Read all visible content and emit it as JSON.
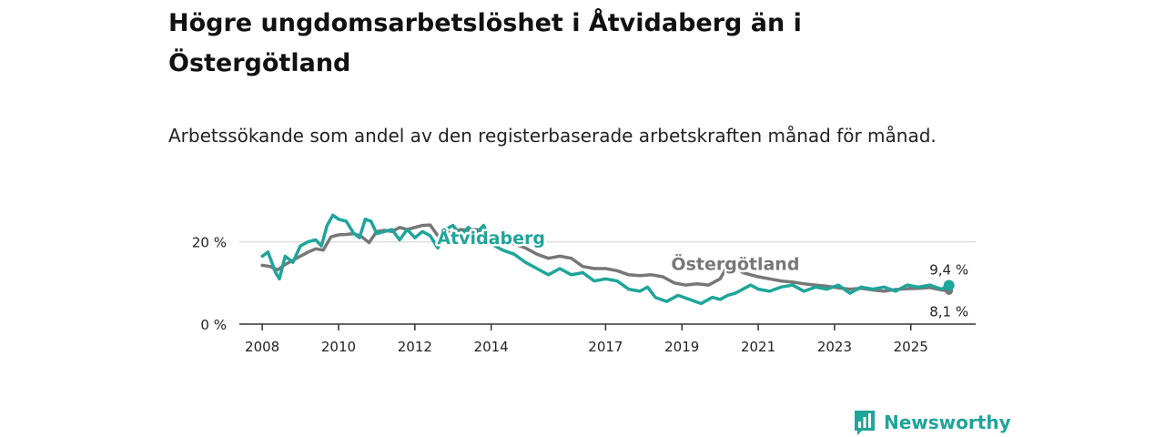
{
  "title": "Högre ungdomsarbetslöshet i Åtvidaberg än i Östergötland",
  "subtitle": "Arbetssökande som andel av den registerbaserade arbetskraften månad för månad.",
  "brand": {
    "name": "Newsworthy",
    "icon": "bar-chart-icon",
    "color": "#1fa59a"
  },
  "chart_data": {
    "type": "line",
    "y_ticks": [
      {
        "value": 0,
        "label": "0 %"
      },
      {
        "value": 20,
        "label": "20 %"
      }
    ],
    "ylim": [
      0,
      27
    ],
    "x_ticks": [
      {
        "value": 2008,
        "label": "2008"
      },
      {
        "value": 2010,
        "label": "2010"
      },
      {
        "value": 2012,
        "label": "2012"
      },
      {
        "value": 2014,
        "label": "2014"
      },
      {
        "value": 2017,
        "label": "2017"
      },
      {
        "value": 2019,
        "label": "2019"
      },
      {
        "value": 2021,
        "label": "2021"
      },
      {
        "value": 2023,
        "label": "2023"
      },
      {
        "value": 2025,
        "label": "2025"
      }
    ],
    "xlim": [
      2007.4,
      2026.7
    ],
    "series": [
      {
        "name": "Östergötland",
        "color": "#777777",
        "end_label": "8,1 %",
        "x": [
          2008.0,
          2008.2,
          2008.4,
          2008.6,
          2008.8,
          2009.0,
          2009.2,
          2009.4,
          2009.6,
          2009.8,
          2010.0,
          2010.2,
          2010.4,
          2010.6,
          2010.8,
          2011.0,
          2011.2,
          2011.4,
          2011.6,
          2011.8,
          2012.0,
          2012.2,
          2012.4,
          2012.6,
          2012.8,
          2013.0,
          2013.2,
          2013.4,
          2013.6,
          2013.8,
          2014.0,
          2014.3,
          2014.6,
          2014.9,
          2015.2,
          2015.5,
          2015.8,
          2016.1,
          2016.4,
          2016.7,
          2017.0,
          2017.3,
          2017.6,
          2017.9,
          2018.2,
          2018.5,
          2018.8,
          2019.1,
          2019.4,
          2019.7,
          2020.0,
          2020.2,
          2020.4,
          2020.6,
          2020.8,
          2021.0,
          2021.3,
          2021.6,
          2021.9,
          2022.2,
          2022.5,
          2022.8,
          2023.1,
          2023.4,
          2023.7,
          2024.0,
          2024.3,
          2024.6,
          2024.9,
          2025.2,
          2025.5,
          2025.8,
          2026.0
        ],
        "y": [
          14.3,
          14.0,
          13.2,
          14.5,
          15.5,
          16.5,
          17.5,
          18.3,
          18.0,
          21.2,
          21.7,
          21.8,
          22.0,
          21.3,
          19.8,
          22.5,
          22.8,
          22.5,
          23.5,
          23.0,
          23.5,
          24.0,
          24.1,
          21.5,
          22.0,
          22.5,
          23.0,
          22.8,
          23.0,
          22.5,
          21.0,
          20.5,
          19.5,
          18.5,
          17.0,
          16.0,
          16.5,
          16.0,
          14.0,
          13.5,
          13.5,
          13.0,
          12.0,
          11.8,
          12.0,
          11.5,
          10.0,
          9.5,
          9.8,
          9.5,
          11.0,
          14.2,
          14.0,
          12.5,
          12.0,
          11.5,
          11.0,
          10.5,
          10.2,
          9.8,
          9.5,
          9.2,
          8.8,
          8.5,
          8.7,
          8.3,
          8.0,
          8.4,
          8.6,
          8.7,
          8.9,
          8.3,
          8.1
        ]
      },
      {
        "name": "Åtvidaberg",
        "color": "#1fa59a",
        "end_label": "9,4 %",
        "x": [
          2008.0,
          2008.15,
          2008.35,
          2008.45,
          2008.6,
          2008.8,
          2009.0,
          2009.2,
          2009.4,
          2009.55,
          2009.7,
          2009.85,
          2010.0,
          2010.2,
          2010.4,
          2010.55,
          2010.7,
          2010.85,
          2011.0,
          2011.2,
          2011.4,
          2011.6,
          2011.8,
          2012.0,
          2012.2,
          2012.4,
          2012.6,
          2012.8,
          2013.0,
          2013.2,
          2013.4,
          2013.6,
          2013.8,
          2014.0,
          2014.3,
          2014.6,
          2014.9,
          2015.2,
          2015.5,
          2015.8,
          2016.1,
          2016.4,
          2016.7,
          2017.0,
          2017.3,
          2017.6,
          2017.9,
          2018.1,
          2018.3,
          2018.6,
          2018.9,
          2019.2,
          2019.5,
          2019.8,
          2020.0,
          2020.2,
          2020.4,
          2020.6,
          2020.8,
          2021.0,
          2021.3,
          2021.6,
          2021.9,
          2022.2,
          2022.5,
          2022.8,
          2023.1,
          2023.4,
          2023.7,
          2024.0,
          2024.3,
          2024.6,
          2024.9,
          2025.2,
          2025.5,
          2025.8,
          2026.0
        ],
        "y": [
          16.5,
          17.5,
          12.5,
          11.0,
          16.5,
          15.0,
          19.0,
          20.0,
          20.5,
          19.0,
          24.0,
          26.5,
          25.5,
          25.0,
          22.0,
          21.0,
          25.5,
          25.0,
          22.0,
          22.5,
          23.0,
          20.5,
          23.0,
          21.0,
          22.5,
          21.5,
          18.5,
          23.0,
          24.0,
          21.5,
          23.5,
          22.0,
          24.0,
          19.5,
          18.0,
          17.0,
          15.0,
          13.5,
          12.0,
          13.5,
          12.0,
          12.5,
          10.5,
          11.0,
          10.5,
          8.5,
          8.0,
          9.0,
          6.5,
          5.5,
          7.0,
          6.0,
          5.0,
          6.5,
          6.0,
          7.0,
          7.5,
          8.5,
          9.5,
          8.5,
          8.0,
          9.0,
          9.5,
          8.0,
          9.0,
          8.5,
          9.5,
          7.5,
          9.0,
          8.5,
          9.0,
          8.0,
          9.5,
          9.0,
          9.5,
          8.5,
          9.4
        ]
      }
    ],
    "annotations": [
      {
        "text": "Åtvidaberg",
        "series": "Åtvidaberg"
      },
      {
        "text": "Östergötland",
        "series": "Östergötland"
      }
    ]
  }
}
